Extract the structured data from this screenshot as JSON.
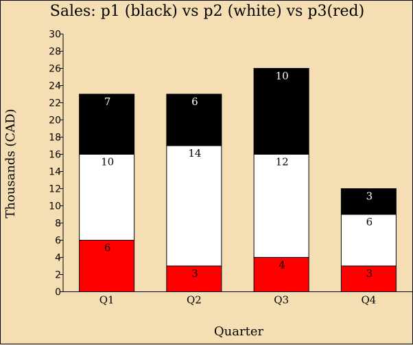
{
  "chart_data": {
    "type": "bar",
    "stacked": true,
    "title": "Sales: p1 (black) vs p2 (white) vs p3(red)",
    "xlabel": "Quarter",
    "ylabel": "Thousands (CAD)",
    "ylim": [
      0,
      30
    ],
    "yticks": [
      0,
      2,
      4,
      6,
      8,
      10,
      12,
      14,
      16,
      18,
      20,
      22,
      24,
      26,
      28,
      30
    ],
    "categories": [
      "Q1",
      "Q2",
      "Q3",
      "Q4"
    ],
    "series": [
      {
        "name": "p3",
        "color": "#ff0000",
        "label_color": "#000000",
        "values": [
          6,
          3,
          4,
          3
        ]
      },
      {
        "name": "p2",
        "color": "#ffffff",
        "label_color": "#000000",
        "values": [
          10,
          14,
          12,
          6
        ]
      },
      {
        "name": "p1",
        "color": "#000000",
        "label_color": "#ffffff",
        "values": [
          7,
          6,
          10,
          3
        ]
      }
    ],
    "background": "#f5deb3",
    "grid": false,
    "legend": "none"
  }
}
